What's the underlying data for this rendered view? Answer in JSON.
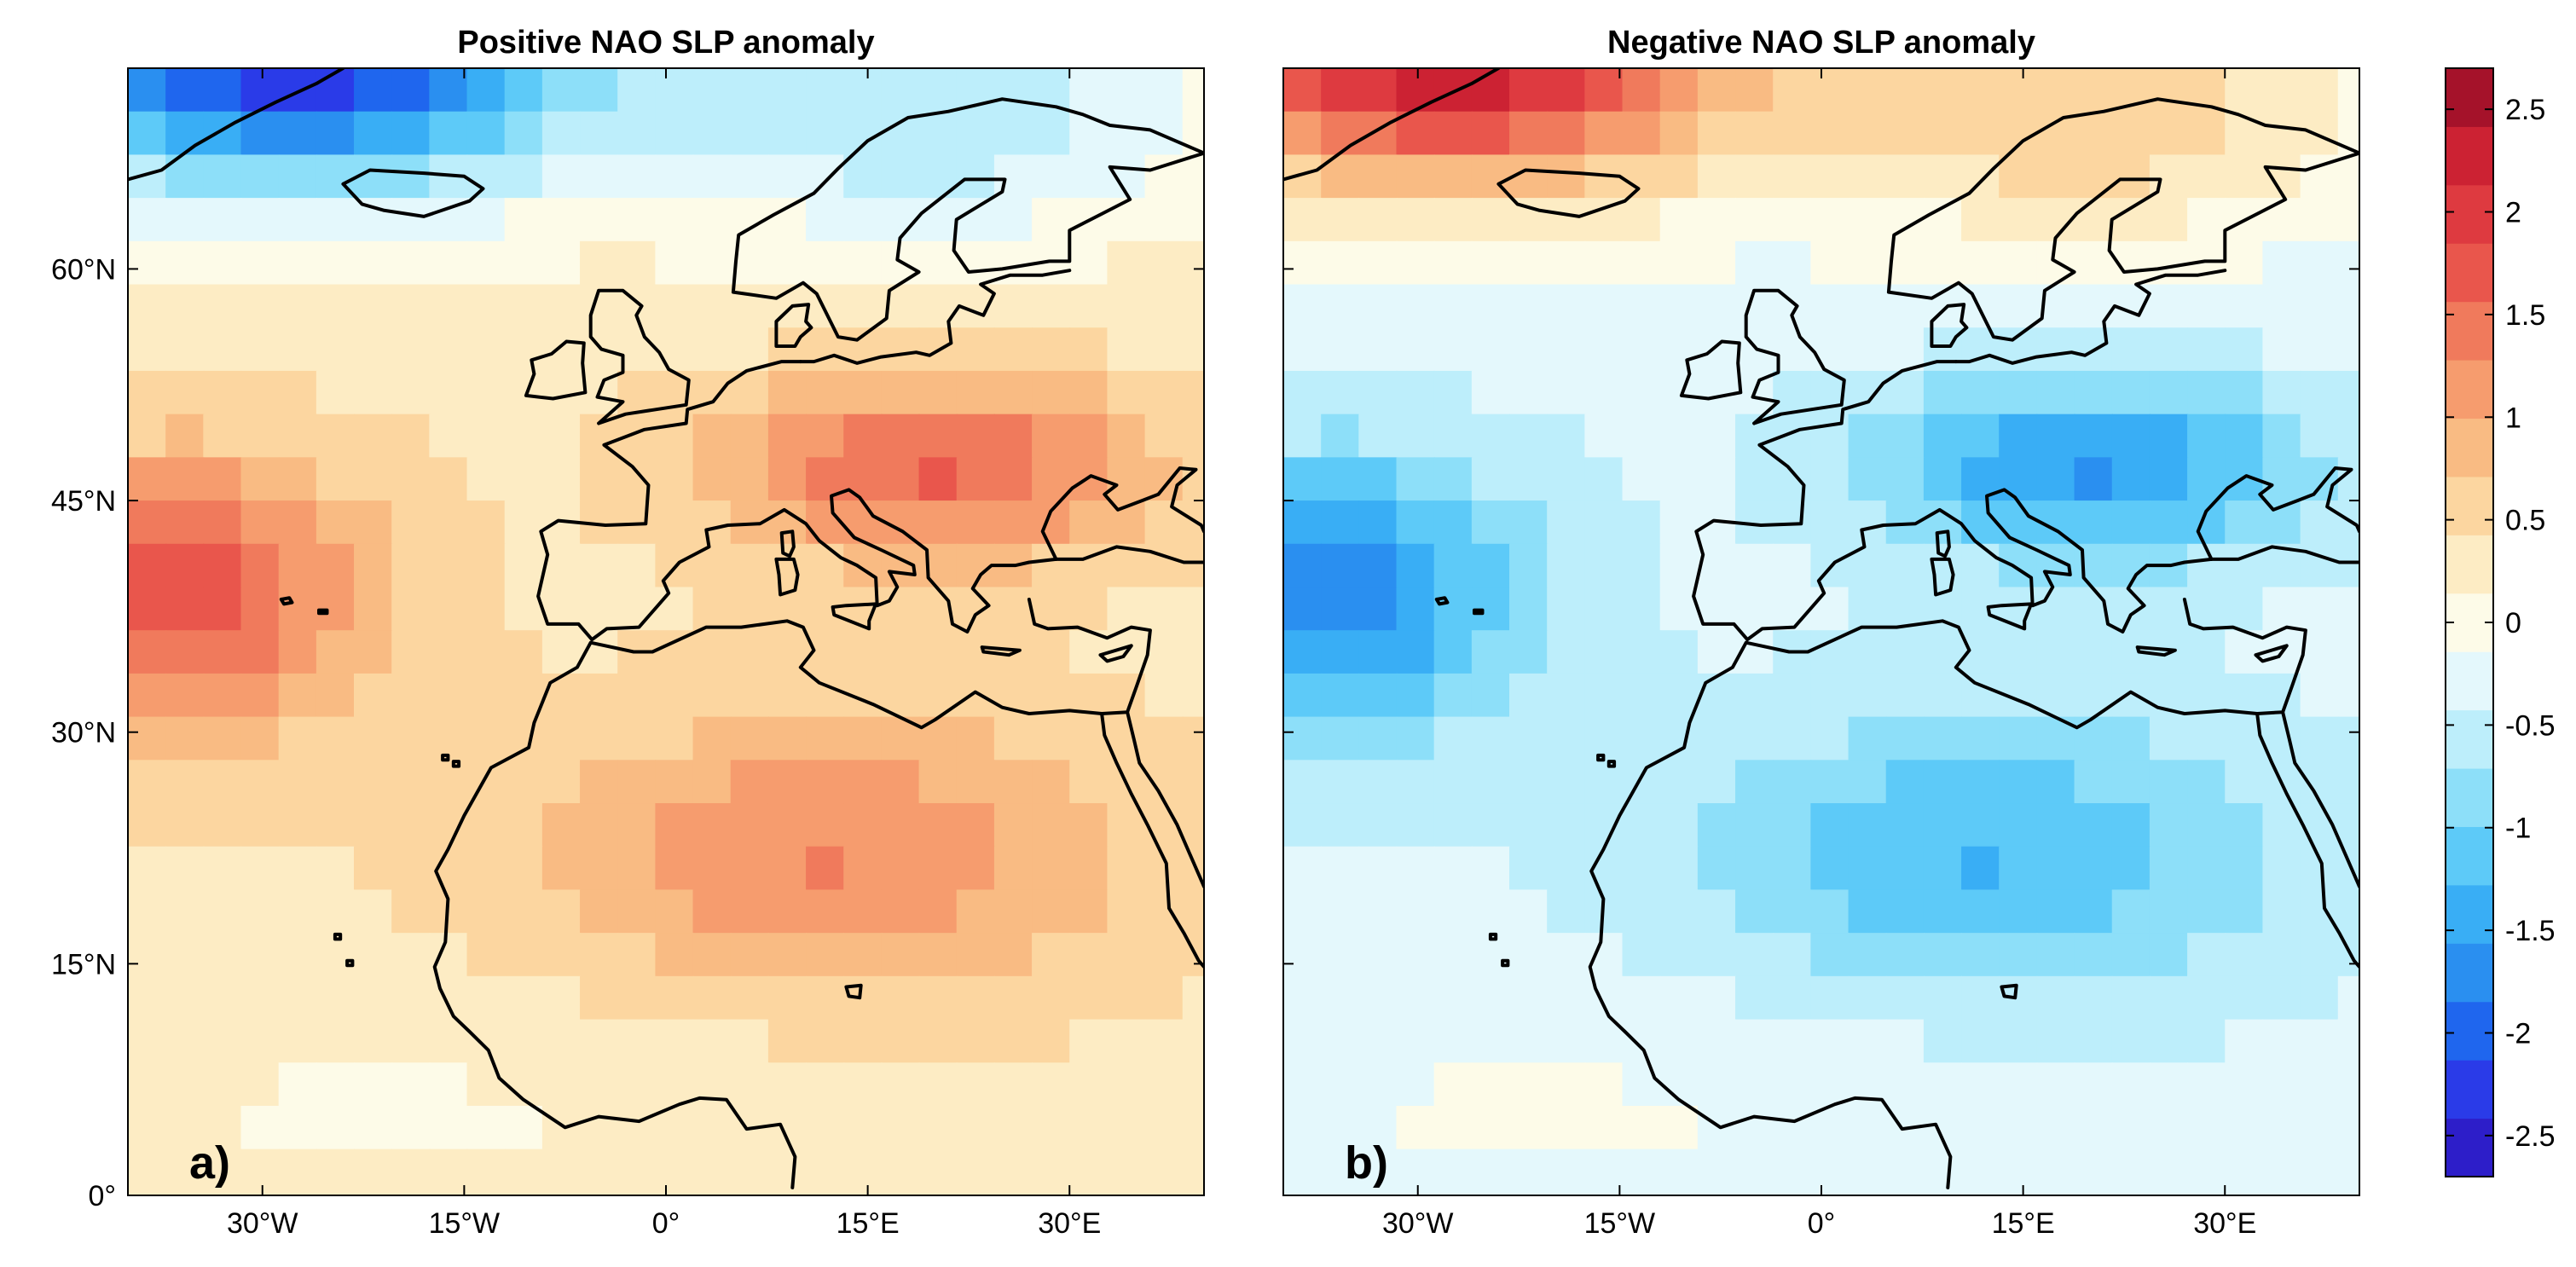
{
  "panels": [
    {
      "id": "a",
      "title": "Positive NAO SLP anomaly",
      "label": "a)",
      "pattern": "positive"
    },
    {
      "id": "b",
      "title": "Negative NAO SLP anomaly",
      "label": "b)",
      "pattern": "negative"
    }
  ],
  "axes": {
    "longitude_ticks": [
      {
        "value": -30,
        "label": "30°W"
      },
      {
        "value": -15,
        "label": "15°W"
      },
      {
        "value": 0,
        "label": "0°"
      },
      {
        "value": 15,
        "label": "15°E"
      },
      {
        "value": 30,
        "label": "30°E"
      }
    ],
    "latitude_ticks": [
      {
        "value": 0,
        "label": "0°"
      },
      {
        "value": 15,
        "label": "15°N"
      },
      {
        "value": 30,
        "label": "30°N"
      },
      {
        "value": 45,
        "label": "45°N"
      },
      {
        "value": 60,
        "label": "60°N"
      }
    ],
    "lon_range": [
      -40,
      40
    ],
    "lat_range": [
      0,
      73
    ]
  },
  "colorbar": {
    "range": [
      -2.7,
      2.7
    ],
    "ticks": [
      {
        "value": 2.5,
        "label": "2.5"
      },
      {
        "value": 2,
        "label": "2"
      },
      {
        "value": 1.5,
        "label": "1.5"
      },
      {
        "value": 1,
        "label": "1"
      },
      {
        "value": 0.5,
        "label": "0.5"
      },
      {
        "value": 0,
        "label": "0"
      },
      {
        "value": -0.5,
        "label": "-0.5"
      },
      {
        "value": -1,
        "label": "-1"
      },
      {
        "value": -1.5,
        "label": "-1.5"
      },
      {
        "value": -2,
        "label": "-2"
      },
      {
        "value": -2.5,
        "label": "-2.5"
      }
    ],
    "colors": [
      "#2d1ec9",
      "#2a3be8",
      "#1f66ee",
      "#2a8ff0",
      "#39aef5",
      "#5dcaf8",
      "#8ddff9",
      "#bdeefb",
      "#e4f8fc",
      "#fdfbe8",
      "#fdecc4",
      "#fcd6a0",
      "#f9bb83",
      "#f69c6e",
      "#f07a5c",
      "#e9564c",
      "#de3a40",
      "#cc2233",
      "#a5122a"
    ]
  }
}
